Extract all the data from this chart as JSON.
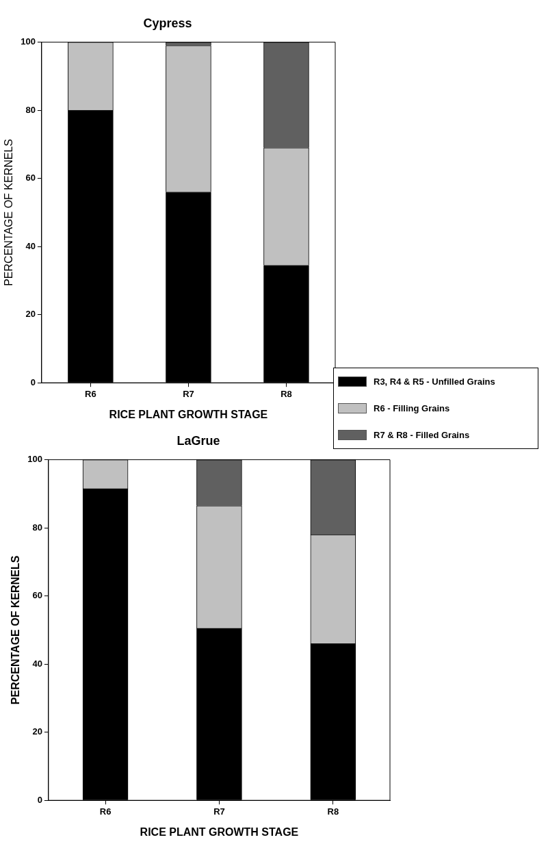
{
  "chart_data": [
    {
      "type": "bar",
      "title": "Cypress",
      "xlabel": "RICE PLANT GROWTH STAGE",
      "ylabel": "PERCENTAGE OF KERNELS",
      "stacked": true,
      "legend": "bottom right",
      "categories": [
        "R6",
        "R7",
        "R8"
      ],
      "ylim": [
        0,
        100
      ],
      "yticks": [
        0,
        20,
        40,
        60,
        80,
        100
      ],
      "series": [
        {
          "name": "R3, R4 & R5 - Unfilled Grains",
          "color": "#000000",
          "values": [
            80,
            56,
            34.5
          ]
        },
        {
          "name": "R6 - Filling Grains",
          "color": "#c0c0c0",
          "values": [
            20,
            43,
            34.5
          ]
        },
        {
          "name": "R7 & R8 -  Filled Grains",
          "color": "#606060",
          "values": [
            0,
            1,
            31
          ]
        }
      ]
    },
    {
      "type": "bar",
      "title": "LaGrue",
      "xlabel": "RICE PLANT GROWTH STAGE",
      "ylabel": "PERCENTAGE OF KERNELS",
      "stacked": true,
      "categories": [
        "R6",
        "R7",
        "R8"
      ],
      "ylim": [
        0,
        100
      ],
      "yticks": [
        0,
        20,
        40,
        60,
        80,
        100
      ],
      "series": [
        {
          "name": "R3, R4 & R5 - Unfilled Grains",
          "color": "#000000",
          "values": [
            91.5,
            50.5,
            46
          ]
        },
        {
          "name": "R6 - Filling Grains",
          "color": "#c0c0c0",
          "values": [
            8.5,
            36,
            32
          ]
        },
        {
          "name": "R7 & R8 -  Filled Grains",
          "color": "#606060",
          "values": [
            0,
            13.5,
            22
          ]
        }
      ]
    }
  ]
}
